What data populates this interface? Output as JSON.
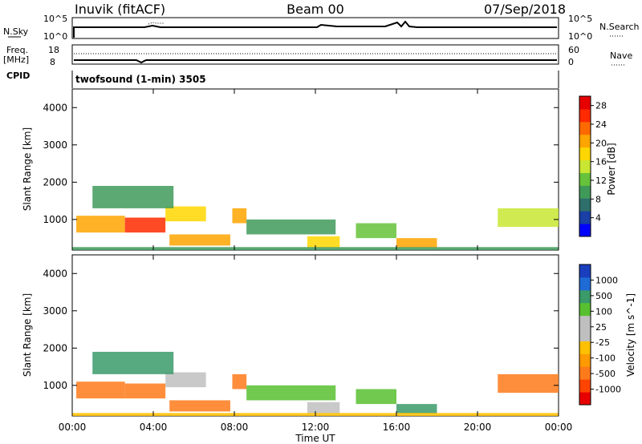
{
  "header": {
    "station": "Inuvik (fitACF)",
    "beam": "Beam 00",
    "date": "07/Sep/2018"
  },
  "top_panels": {
    "nsky_label": "N.Sky",
    "nsearch_label": "N.Search",
    "nsky_ticks": [
      "10^5",
      "10^0"
    ],
    "nsearch_ticks": [
      "10^5",
      "10^0"
    ],
    "freq_label_1": "Freq.",
    "freq_label_2": "[MHz]",
    "freq_ticks": [
      "18",
      "8"
    ],
    "nave_ticks": [
      "60",
      "0"
    ],
    "nave_label": "Nave",
    "cpid_label": "CPID",
    "program": "twofsound (1-min) 3505"
  },
  "colors": {
    "power_scale": [
      "#0000ff",
      "#1a3fa5",
      "#2e6f6b",
      "#3f9a5a",
      "#66c23a",
      "#c8e632",
      "#ffd700",
      "#ffa500",
      "#ff6a00",
      "#ff2a00",
      "#e60000"
    ],
    "velocity_scale": [
      "#e80000",
      "#ff4400",
      "#ff7a1a",
      "#ff9a00",
      "#ffc000",
      "#bfbfbf",
      "#bfbfbf",
      "#58c030",
      "#3a9a6a",
      "#1f6bd6",
      "#1a3fbe"
    ]
  },
  "chart_data": [
    {
      "type": "heatmap",
      "title": "Power",
      "xlabel": "Time UT",
      "ylabel": "Slant Range [km]",
      "x_ticks": [
        "00:00",
        "04:00",
        "08:00",
        "12:00",
        "16:00",
        "20:00",
        "00:00"
      ],
      "y_ticks": [
        1000,
        2000,
        3000,
        4000
      ],
      "xlim_hours": [
        0,
        24
      ],
      "ylim_km": [
        180,
        4500
      ],
      "colorbar": {
        "label": "Power [dB]",
        "ticks": [
          4,
          8,
          12,
          16,
          20,
          24,
          28
        ],
        "range": [
          0,
          30
        ]
      },
      "regions": [
        {
          "t0": 0.2,
          "t1": 2.6,
          "r0": 650,
          "r1": 1100,
          "v": 22
        },
        {
          "t0": 2.6,
          "t1": 4.6,
          "r0": 650,
          "r1": 1050,
          "v": 28
        },
        {
          "t0": 4.6,
          "t1": 6.6,
          "r0": 950,
          "r1": 1350,
          "v": 18
        },
        {
          "t0": 4.8,
          "t1": 7.8,
          "r0": 300,
          "r1": 600,
          "v": 22
        },
        {
          "t0": 7.9,
          "t1": 8.6,
          "r0": 900,
          "r1": 1300,
          "v": 22
        },
        {
          "t0": 1.0,
          "t1": 5.0,
          "r0": 1300,
          "r1": 1900,
          "v": 10
        },
        {
          "t0": 8.6,
          "t1": 13.0,
          "r0": 600,
          "r1": 1000,
          "v": 8
        },
        {
          "t0": 11.6,
          "t1": 13.2,
          "r0": 250,
          "r1": 550,
          "v": 18
        },
        {
          "t0": 14.0,
          "t1": 16.0,
          "r0": 500,
          "r1": 900,
          "v": 12
        },
        {
          "t0": 16.0,
          "t1": 18.0,
          "r0": 250,
          "r1": 500,
          "v": 20
        },
        {
          "t0": 21.0,
          "t1": 24.0,
          "r0": 800,
          "r1": 1300,
          "v": 14
        },
        {
          "t0": 0.0,
          "t1": 24.0,
          "r0": 180,
          "r1": 260,
          "v": 10
        }
      ]
    },
    {
      "type": "heatmap",
      "title": "Velocity",
      "xlabel": "Time UT",
      "ylabel": "Slant Range [km]",
      "x_ticks": [
        "00:00",
        "04:00",
        "08:00",
        "12:00",
        "16:00",
        "20:00",
        "00:00"
      ],
      "y_ticks": [
        1000,
        2000,
        3000,
        4000
      ],
      "xlim_hours": [
        0,
        24
      ],
      "ylim_km": [
        180,
        4500
      ],
      "colorbar": {
        "label": "Velocity [m s^-1]",
        "ticks": [
          "1000",
          "500",
          "100",
          "25",
          "-25",
          "-100",
          "-500",
          "-1000"
        ]
      },
      "regions": [
        {
          "t0": 0.2,
          "t1": 2.6,
          "r0": 650,
          "r1": 1100,
          "v": -100
        },
        {
          "t0": 2.6,
          "t1": 4.6,
          "r0": 650,
          "r1": 1050,
          "v": -300
        },
        {
          "t0": 4.6,
          "t1": 6.6,
          "r0": 950,
          "r1": 1350,
          "v": 0
        },
        {
          "t0": 4.8,
          "t1": 7.8,
          "r0": 300,
          "r1": 600,
          "v": -200
        },
        {
          "t0": 7.9,
          "t1": 8.6,
          "r0": 900,
          "r1": 1300,
          "v": -300
        },
        {
          "t0": 1.0,
          "t1": 5.0,
          "r0": 1300,
          "r1": 1900,
          "v": 500
        },
        {
          "t0": 8.6,
          "t1": 13.0,
          "r0": 600,
          "r1": 1000,
          "v": 50
        },
        {
          "t0": 11.6,
          "t1": 13.2,
          "r0": 250,
          "r1": 550,
          "v": 0
        },
        {
          "t0": 14.0,
          "t1": 16.0,
          "r0": 500,
          "r1": 900,
          "v": 100
        },
        {
          "t0": 16.0,
          "t1": 18.0,
          "r0": 250,
          "r1": 500,
          "v": 200
        },
        {
          "t0": 21.0,
          "t1": 24.0,
          "r0": 800,
          "r1": 1300,
          "v": -300
        },
        {
          "t0": 0.0,
          "t1": 24.0,
          "r0": 180,
          "r1": 260,
          "v": -50
        }
      ]
    }
  ]
}
